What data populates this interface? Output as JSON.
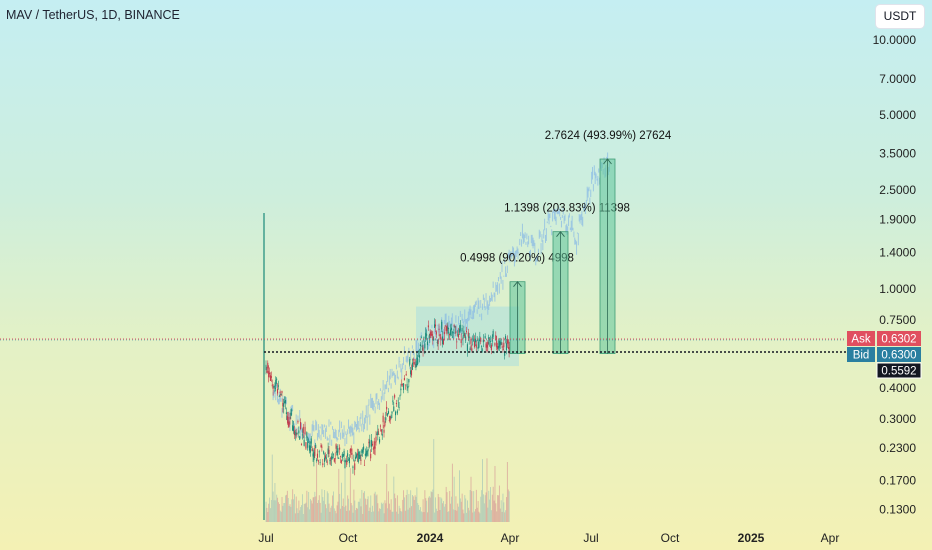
{
  "header": {
    "symbol_title": "MAV / TetherUS, 1D, BINANCE",
    "currency_button": "USDT"
  },
  "chart_data": {
    "type": "candlestick",
    "title": "MAV / TetherUS, 1D, BINANCE",
    "y_scale": "log",
    "y_ticks": [
      "10.0000",
      "7.0000",
      "5.0000",
      "3.5000",
      "2.5000",
      "1.9000",
      "1.4000",
      "1.0000",
      "0.7500",
      "0.4000",
      "0.3000",
      "0.2300",
      "0.1700",
      "0.1300"
    ],
    "x_ticks": [
      "Jul",
      "Oct",
      "2024",
      "Apr",
      "Jul",
      "Oct",
      "2025",
      "Apr"
    ],
    "price_tags": [
      {
        "label": "Ask",
        "value": "0.6302",
        "color": "#e04f5f"
      },
      {
        "label": "Bid",
        "value": "0.6300",
        "color": "#2a7fa0"
      },
      {
        "label": "",
        "value": "0.5592",
        "color": "#131722"
      }
    ],
    "projections": [
      {
        "text": "0.4998 (90.20%) 4998",
        "from": 0.55,
        "to": 1.07
      },
      {
        "text": "1.1398 (203.83%) 11398",
        "from": 0.55,
        "to": 1.7
      },
      {
        "text": "2.7624 (493.99%) 27624",
        "from": 0.55,
        "to": 3.33
      }
    ],
    "range_box": {
      "from": 0.49,
      "to": 0.85,
      "start": "2023-12",
      "end": "2024-03"
    },
    "colors": {
      "up": "#1b8a7a",
      "down": "#c23a4a",
      "projection_fill": "#5fc49a",
      "range_fill": "#a9dfe0",
      "ghost": "#86b8e6"
    }
  }
}
